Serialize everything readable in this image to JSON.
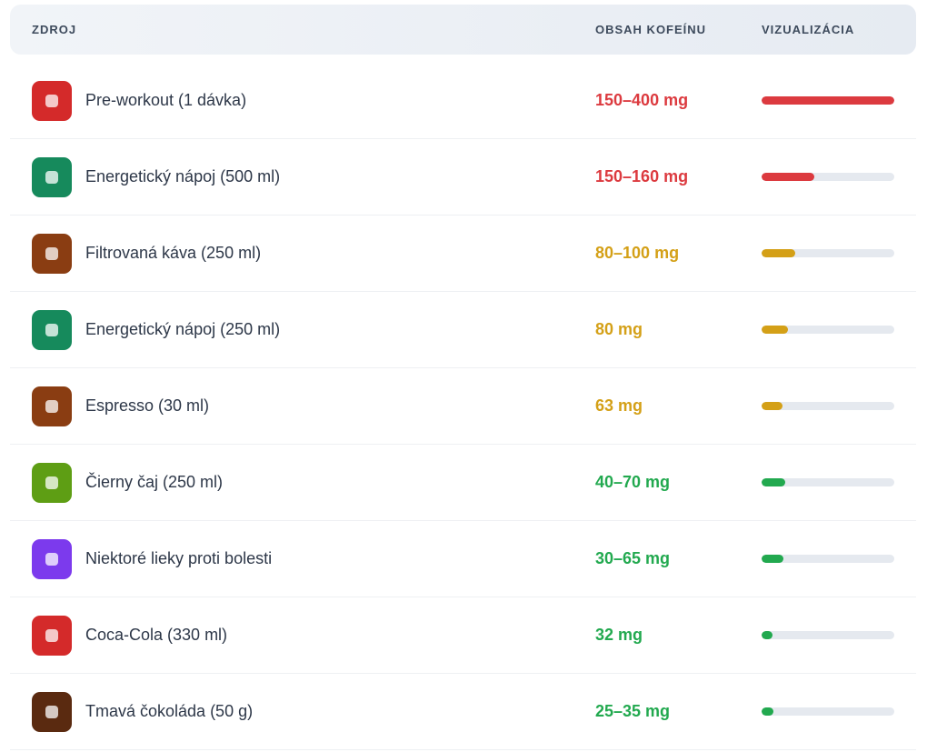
{
  "table": {
    "headers": [
      "ZDROJ",
      "OBSAH KOFEÍNU",
      "VIZUALIZÁCIA"
    ],
    "rows": [
      {
        "name": "Pre-workout (1 dávka)",
        "amount": "150–400 mg",
        "level": 100,
        "color": "#dc3a3f",
        "icon_color": "#d42a2a"
      },
      {
        "name": "Energetický nápoj (500 ml)",
        "amount": "150–160 mg",
        "level": 40,
        "color": "#dc3a3f",
        "icon_color": "#168a5c"
      },
      {
        "name": "Filtrovaná káva (250 ml)",
        "amount": "80–100 mg",
        "level": 25,
        "color": "#d4a017",
        "icon_color": "#8a3d12"
      },
      {
        "name": "Energetický nápoj (250 ml)",
        "amount": "80 mg",
        "level": 20,
        "color": "#d4a017",
        "icon_color": "#168a5c"
      },
      {
        "name": "Espresso (30 ml)",
        "amount": "63 mg",
        "level": 15.75,
        "color": "#d4a017",
        "icon_color": "#8a3d12"
      },
      {
        "name": "Čierny čaj (250 ml)",
        "amount": "40–70 mg",
        "level": 17.5,
        "color": "#22a94f",
        "icon_color": "#5e9e14"
      },
      {
        "name": "Niektoré lieky proti bolesti",
        "amount": "30–65 mg",
        "level": 16.25,
        "color": "#22a94f",
        "icon_color": "#7c3aed"
      },
      {
        "name": "Coca-Cola (330 ml)",
        "amount": "32 mg",
        "level": 8,
        "color": "#22a94f",
        "icon_color": "#d42a2a"
      },
      {
        "name": "Tmavá čokoláda (50 g)",
        "amount": "25–35 mg",
        "level": 8.75,
        "color": "#22a94f",
        "icon_color": "#5a2a10"
      }
    ]
  }
}
